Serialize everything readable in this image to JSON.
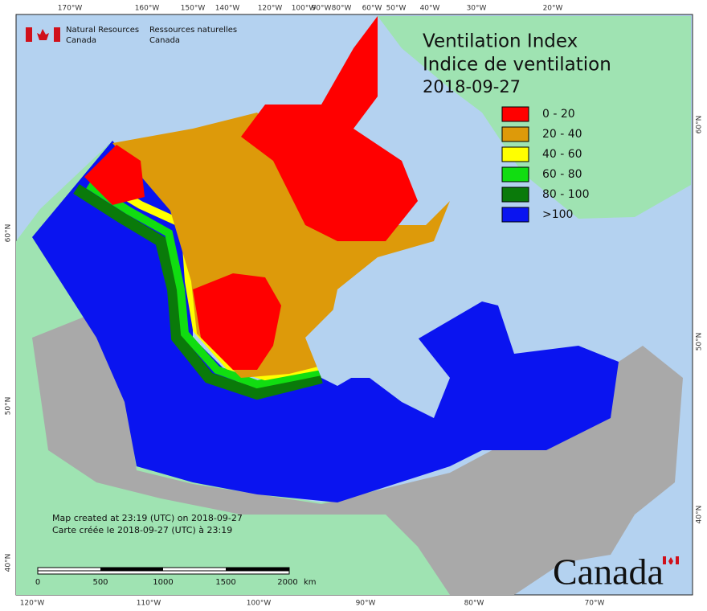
{
  "logo": {
    "org_en": "Natural Resources",
    "country_en": "Canada",
    "org_fr": "Ressources naturelles",
    "country_fr": "Canada"
  },
  "title": {
    "en": "Ventilation Index",
    "fr": "Indice de ventilation",
    "date": "2018-09-27"
  },
  "legend": [
    {
      "label": "0 - 20",
      "color": "#ff0000"
    },
    {
      "label": "20 - 40",
      "color": "#dd9a0a"
    },
    {
      "label": "40 - 60",
      "color": "#ffff00"
    },
    {
      "label": "60 - 80",
      "color": "#11dd11"
    },
    {
      "label": "80 - 100",
      "color": "#0a7a0a"
    },
    {
      "label": ">100",
      "color": "#0a14f0"
    }
  ],
  "graticule": {
    "top": [
      "170°W",
      "160°W",
      "150°W",
      "140°W",
      "120°W",
      "100°W",
      "90°W",
      "80°W",
      "60°W",
      "50°W",
      "40°W",
      "30°W",
      "20°W"
    ],
    "bottom": [
      "120°W",
      "110°W",
      "100°W",
      "90°W",
      "80°W",
      "70°W"
    ],
    "left": [
      "60°N",
      "50°N",
      "40°N"
    ],
    "right": [
      "60°N",
      "50°N",
      "40°N"
    ]
  },
  "credits": [
    "Map created at 23:19 (UTC) on 2018-09-27",
    "Carte créée le 2018-09-27 (UTC) à 23:19"
  ],
  "scale_bar": {
    "ticks": [
      "0",
      "500",
      "1000",
      "1500",
      "2000"
    ],
    "unit": "km"
  },
  "wordmark": "Canada"
}
